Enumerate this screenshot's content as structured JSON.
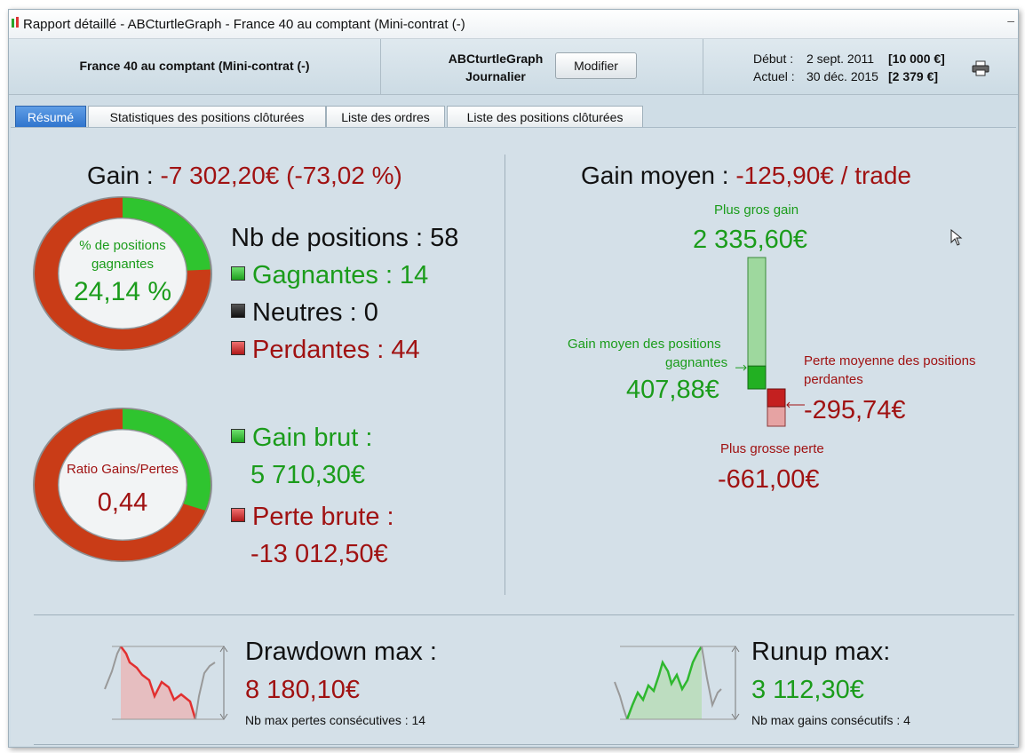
{
  "window": {
    "title": "Rapport détaillé - ABCturtleGraph - France 40 au comptant (Mini-contrat  (-)",
    "minimize": "–"
  },
  "header": {
    "instrument": "France 40 au comptant (Mini-contrat  (-)",
    "graph_name": "ABCturtleGraph",
    "period": "Journalier",
    "modify_button": "Modifier",
    "start_label": "Début :",
    "start_date": "2 sept. 2011",
    "start_capital": "[10 000 €]",
    "current_label": "Actuel :",
    "current_date": "30 déc. 2015",
    "current_capital": "[2 379 €]",
    "print_icon": "printer-icon"
  },
  "tabs": [
    {
      "label": "Résumé",
      "active": true
    },
    {
      "label": "Statistiques des positions clôturées",
      "active": false
    },
    {
      "label": "Liste des ordres",
      "active": false
    },
    {
      "label": "Liste des positions clôturées",
      "active": false
    }
  ],
  "summary": {
    "gain_label": "Gain :",
    "gain_value": "-7 302,20€",
    "gain_percent": "(-73,02 %)",
    "win_donut": {
      "label": "% de positions gagnantes",
      "value": "24,14 %",
      "fraction": 0.2414
    },
    "ratio_donut": {
      "label": "Ratio Gains/Pertes",
      "value": "0,44",
      "fraction": 0.3049
    },
    "nb_positions": "Nb de positions : 58",
    "winning": "Gagnantes : 14",
    "neutral": "Neutres : 0",
    "losing": "Perdantes : 44",
    "gross_gain_label": "Gain brut :",
    "gross_gain_value": "5 710,30€",
    "gross_loss_label": "Perte brute :",
    "gross_loss_value": "-13 012,50€"
  },
  "average": {
    "title": "Gain moyen :",
    "value": "-125,90€ / trade",
    "biggest_gain_label": "Plus gros gain",
    "biggest_gain_value": "2 335,60€",
    "avg_win_label_1": "Gain moyen des positions",
    "avg_win_label_2": "gagnantes",
    "avg_win_value": "407,88€",
    "avg_loss_label_1": "Perte moyenne des positions",
    "avg_loss_label_2": "perdantes",
    "avg_loss_value": "-295,74€",
    "biggest_loss_label": "Plus grosse perte",
    "biggest_loss_value": "-661,00€",
    "bar_values": {
      "biggest_gain": 2335.6,
      "avg_win": 407.88,
      "avg_loss": -295.74,
      "biggest_loss": -661.0
    }
  },
  "drawdown": {
    "title": "Drawdown max :",
    "value": "8 180,10€",
    "note": "Nb max pertes consécutives : 14"
  },
  "runup": {
    "title": "Runup max:",
    "value": "3 112,30€",
    "note": "Nb max gains consécutifs : 4"
  },
  "colors": {
    "green": "#1b9c1b",
    "red": "#a01212",
    "tab_active": "#2e73cc"
  }
}
